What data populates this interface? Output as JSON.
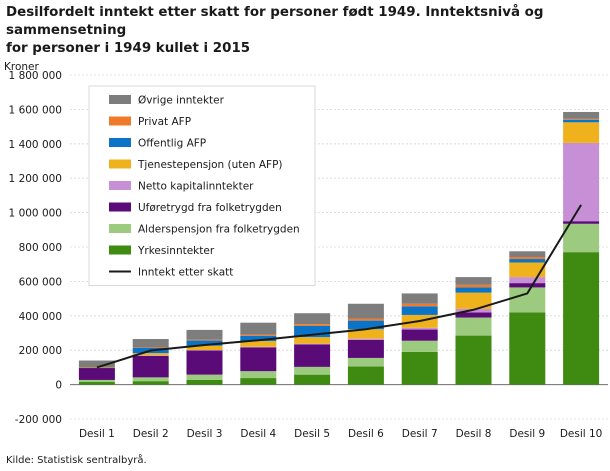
{
  "title_line1": "Desilfordelt inntekt etter skatt for personer født 1949. Inntektsnivå og sammensetning",
  "title_line2": "for personer i 1949 kullet i 2015",
  "source": "Kilde: Statistisk sentralbyrå.",
  "chart_data": {
    "type": "bar",
    "stacked": true,
    "ylabel": "Kroner",
    "ylim": [
      -200000,
      1800000
    ],
    "yticks": [
      -200000,
      0,
      200000,
      400000,
      600000,
      800000,
      1000000,
      1200000,
      1400000,
      1600000,
      1800000
    ],
    "ytick_labels": [
      "-200 000",
      "0",
      "200 000",
      "400 000",
      "600 000",
      "800 000",
      "1 000 000",
      "1 200 000",
      "1 400 000",
      "1 600 000",
      "1 800 000"
    ],
    "grid": true,
    "legend_position": "top-left",
    "categories": [
      "Desil 1",
      "Desil 2",
      "Desil 3",
      "Desil 4",
      "Desil 5",
      "Desil 6",
      "Desil 7",
      "Desil 8",
      "Desil 9",
      "Desil 10"
    ],
    "series": [
      {
        "name": "Yrkesinntekter",
        "color": "#3f8a10",
        "values": [
          15000,
          20000,
          28000,
          38000,
          58000,
          105000,
          190000,
          285000,
          420000,
          770000
        ]
      },
      {
        "name": "Alderspensjon fra folketrygden",
        "color": "#9ccb80",
        "values": [
          12000,
          22000,
          30000,
          40000,
          45000,
          50000,
          65000,
          105000,
          145000,
          165000
        ]
      },
      {
        "name": "Uføretrygd fra folketrygden",
        "color": "#5a0b78",
        "values": [
          70000,
          125000,
          140000,
          138000,
          130000,
          105000,
          65000,
          30000,
          25000,
          15000
        ]
      },
      {
        "name": "Netto kapitalinntekter",
        "color": "#c68fd6",
        "values": [
          0,
          3000,
          3000,
          4000,
          5000,
          7000,
          10000,
          20000,
          35000,
          455000
        ]
      },
      {
        "name": "Tjenestepensjon (uten AFP)",
        "color": "#f0b21c",
        "values": [
          2000,
          13000,
          25000,
          33000,
          38000,
          55000,
          75000,
          95000,
          85000,
          120000
        ]
      },
      {
        "name": "Offentlig AFP",
        "color": "#0a74c8",
        "values": [
          0,
          30000,
          30000,
          30000,
          65000,
          50000,
          50000,
          30000,
          20000,
          15000
        ]
      },
      {
        "name": "Privat AFP",
        "color": "#ef7b2a",
        "values": [
          0,
          3000,
          5000,
          7000,
          10000,
          12000,
          15000,
          15000,
          12000,
          5000
        ]
      },
      {
        "name": "Øvrige inntekter",
        "color": "#7d7d7d",
        "values": [
          41000,
          49000,
          57000,
          70000,
          64000,
          86000,
          60000,
          45000,
          33000,
          40000
        ]
      }
    ],
    "line": {
      "name": "Inntekt etter skatt",
      "color": "#1a1a1a",
      "values": [
        100000,
        198000,
        230000,
        258000,
        290000,
        322000,
        370000,
        435000,
        530000,
        1045000
      ]
    }
  }
}
